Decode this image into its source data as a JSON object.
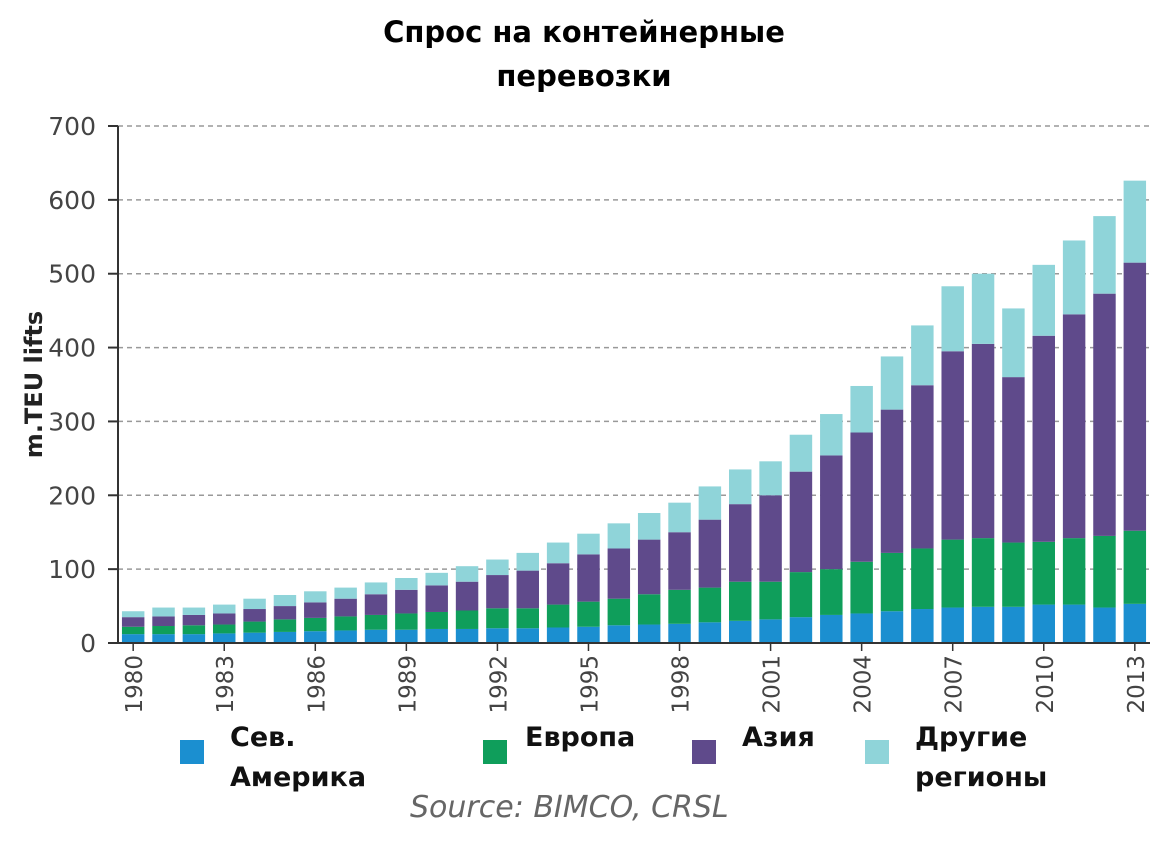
{
  "chart_data": {
    "type": "stacked_bar",
    "title": "Спрос на контейнерные перевозки",
    "y_label": "m.TEU lifts",
    "source": "Source: BIMCO, CRSL",
    "categories": [
      "1980",
      null,
      null,
      "1983",
      null,
      null,
      "1986",
      null,
      null,
      "1989",
      null,
      null,
      "1992",
      null,
      null,
      "1995",
      null,
      null,
      "1998",
      null,
      null,
      "2001",
      null,
      null,
      "2004",
      null,
      null,
      "2007",
      null,
      null,
      "2010",
      null,
      null,
      "2013"
    ],
    "series": [
      {
        "name": "Сев. Америка",
        "color": "#1b8fd0",
        "values": [
          12,
          12,
          12,
          13,
          14,
          15,
          16,
          17,
          18,
          18,
          19,
          19,
          20,
          20,
          21,
          22,
          24,
          25,
          26,
          28,
          30,
          32,
          35,
          38,
          40,
          43,
          46,
          48,
          49,
          49,
          52,
          52,
          48,
          53
        ]
      },
      {
        "name": "Европа",
        "color": "#0f9e5b",
        "values": [
          10,
          11,
          12,
          12,
          15,
          17,
          18,
          19,
          20,
          22,
          23,
          25,
          27,
          27,
          31,
          34,
          36,
          41,
          46,
          47,
          53,
          51,
          61,
          62,
          70,
          79,
          82,
          92,
          93,
          87,
          85,
          90,
          97,
          99
        ]
      },
      {
        "name": "Азия",
        "color": "#5f4a8b",
        "values": [
          13,
          13,
          14,
          15,
          17,
          18,
          21,
          24,
          28,
          32,
          36,
          39,
          45,
          51,
          56,
          64,
          68,
          74,
          78,
          92,
          105,
          117,
          136,
          154,
          175,
          194,
          221,
          255,
          263,
          224,
          279,
          303,
          328,
          363
        ]
      },
      {
        "name": "Другие регионы",
        "color": "#8fd4d9",
        "values": [
          8,
          12,
          10,
          12,
          14,
          15,
          15,
          15,
          16,
          16,
          17,
          21,
          21,
          24,
          28,
          28,
          34,
          36,
          40,
          45,
          47,
          46,
          50,
          56,
          63,
          72,
          81,
          88,
          95,
          93,
          96,
          100,
          105,
          111
        ]
      }
    ],
    "ylim": [
      0,
      700
    ],
    "yticks": [
      0,
      100,
      200,
      300,
      400,
      500,
      600,
      700
    ],
    "grid": true
  }
}
